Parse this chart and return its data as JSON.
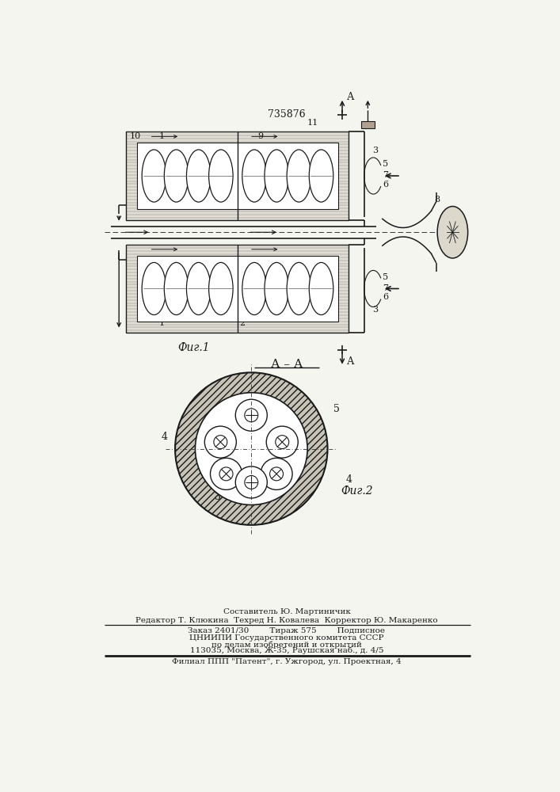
{
  "patent_number": "735876",
  "fig1_label": "Фиг.1",
  "fig2_label": "Фиг.2",
  "section_label": "А – А",
  "bg_color": "#f5f5f0",
  "line_color": "#1a1a1a",
  "footer_line1": "Составитель Ю. Мартиничик",
  "footer_line2": "Редактор Т. Клюкина  Техред Н. Ковалева  Корректор Ю. Макаренко",
  "footer_line3": "Заказ 2401/30        Тираж 575        Подписное",
  "footer_line4": "ЦНИИПИ Государственного комитета СССР",
  "footer_line5": "по делам изобретений и открытий",
  "footer_line6": "113035, Москва, Ж-35, Раушская наб., д. 4/5",
  "footer_line7": "Филиал ППП \"Патент\", г. Ужгород, ул. Проектная, 4"
}
